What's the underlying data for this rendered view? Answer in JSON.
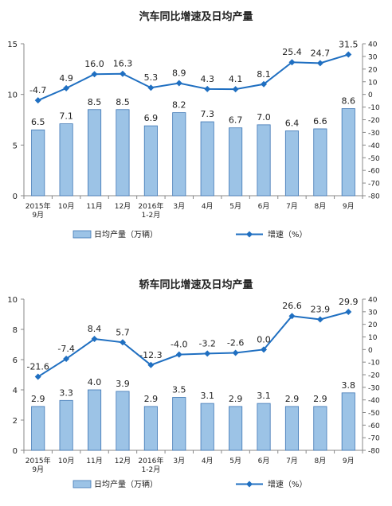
{
  "colors": {
    "bar_fill": "#9cc3e6",
    "bar_stroke": "#3f77b5",
    "line": "#1f6fc1",
    "text": "#222222",
    "axis": "#888888"
  },
  "chart_data": [
    {
      "type": "bar+line",
      "title": "汽车同比增速及日均产量",
      "categories": [
        "2015年\n9月",
        "10月",
        "11月",
        "12月",
        "2016年\n1-2月",
        "3月",
        "4月",
        "5月",
        "6月",
        "7月",
        "8月",
        "9月"
      ],
      "series": [
        {
          "name": "日均产量（万辆）",
          "type": "bar",
          "axis": "left",
          "values": [
            6.5,
            7.1,
            8.5,
            8.5,
            6.9,
            8.2,
            7.3,
            6.7,
            7.0,
            6.4,
            6.6,
            8.6
          ]
        },
        {
          "name": "增速（%）",
          "type": "line",
          "axis": "right",
          "values": [
            -4.7,
            4.9,
            16.0,
            16.3,
            5.3,
            8.9,
            4.3,
            4.1,
            8.1,
            25.4,
            24.7,
            31.5
          ]
        }
      ],
      "bar_labels": [
        "6.5",
        "7.1",
        "8.5",
        "8.5",
        "6.9",
        "8.2",
        "7.3",
        "6.7",
        "7.0",
        "6.4",
        "6.6",
        "8.6"
      ],
      "line_labels": [
        "-4.7",
        "4.9",
        "16.0",
        "16.3",
        "5.3",
        "8.9",
        "4.3",
        "4.1",
        "8.1",
        "25.4",
        "24.7",
        "31.5"
      ],
      "left_axis": {
        "range": [
          0,
          15
        ],
        "ticks": [
          0,
          5,
          10,
          15
        ]
      },
      "right_axis": {
        "range": [
          -80,
          40
        ],
        "ticks": [
          40,
          30,
          20,
          10,
          0,
          -10,
          -20,
          -30,
          -40,
          -50,
          -60,
          -70,
          -80
        ]
      },
      "legend": [
        "日均产量（万辆）",
        "增速（%）"
      ],
      "legend_position": "bottom",
      "grid": false
    },
    {
      "type": "bar+line",
      "title": "轿车同比增速及日均产量",
      "categories": [
        "2015年\n9月",
        "10月",
        "11月",
        "12月",
        "2016年\n1-2月",
        "3月",
        "4月",
        "5月",
        "6月",
        "7月",
        "8月",
        "9月"
      ],
      "series": [
        {
          "name": "日均产量（万辆）",
          "type": "bar",
          "axis": "left",
          "values": [
            2.9,
            3.3,
            4.0,
            3.9,
            2.9,
            3.5,
            3.1,
            2.9,
            3.1,
            2.9,
            2.9,
            3.8
          ]
        },
        {
          "name": "增速（%）",
          "type": "line",
          "axis": "right",
          "values": [
            -21.6,
            -7.4,
            8.4,
            5.7,
            -12.3,
            -4.0,
            -3.2,
            -2.6,
            0.0,
            26.6,
            23.9,
            29.9
          ]
        }
      ],
      "bar_labels": [
        "2.9",
        "3.3",
        "4.0",
        "3.9",
        "2.9",
        "3.5",
        "3.1",
        "2.9",
        "3.1",
        "2.9",
        "2.9",
        "3.8"
      ],
      "line_labels": [
        "-21.6",
        "-7.4",
        "8.4",
        "5.7",
        "-12.3",
        "-4.0",
        "-3.2",
        "-2.6",
        "0.0",
        "26.6",
        "23.9",
        "29.9"
      ],
      "left_axis": {
        "range": [
          0,
          10
        ],
        "ticks": [
          0,
          2,
          4,
          6,
          8,
          10
        ]
      },
      "right_axis": {
        "range": [
          -80,
          40
        ],
        "ticks": [
          40,
          30,
          20,
          10,
          0,
          -10,
          -20,
          -30,
          -40,
          -50,
          -60,
          -70,
          -80
        ]
      },
      "legend": [
        "日均产量（万辆）",
        "增速（%）"
      ],
      "legend_position": "bottom",
      "grid": false
    }
  ]
}
